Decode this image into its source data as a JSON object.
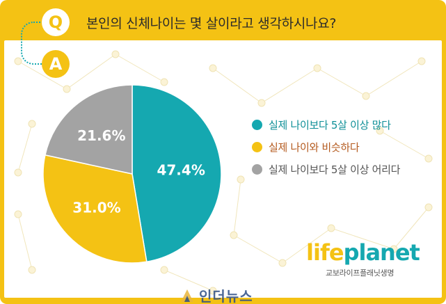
{
  "question": {
    "badge": "Q",
    "text": "본인의 신체나이는 몇 살이라고 생각하시나요?"
  },
  "answer": {
    "badge": "A"
  },
  "chart_data": {
    "type": "pie",
    "title": "",
    "slices": [
      {
        "label": "실제 나이보다 5살 이상 많다",
        "value": 47.4,
        "value_text": "47.4%",
        "color": "#15a8b0",
        "legend_text_color": "#0e8f97"
      },
      {
        "label": "실제 나이와 비슷하다",
        "value": 31.0,
        "value_text": "31.0%",
        "color": "#f4c214",
        "legend_text_color": "#b45a1e"
      },
      {
        "label": "실제 나이보다 5살 이상 어리다",
        "value": 21.6,
        "value_text": "21.6%",
        "color": "#a3a3a3",
        "legend_text_color": "#555555"
      }
    ],
    "start": "12 o'clock",
    "direction": "clockwise",
    "legend_position": "right"
  },
  "brand": {
    "logo_part1": "life",
    "logo_part2": "planet",
    "subtitle": "교보라이프플래닛생명"
  },
  "watermark": {
    "text": "인더뉴스"
  }
}
